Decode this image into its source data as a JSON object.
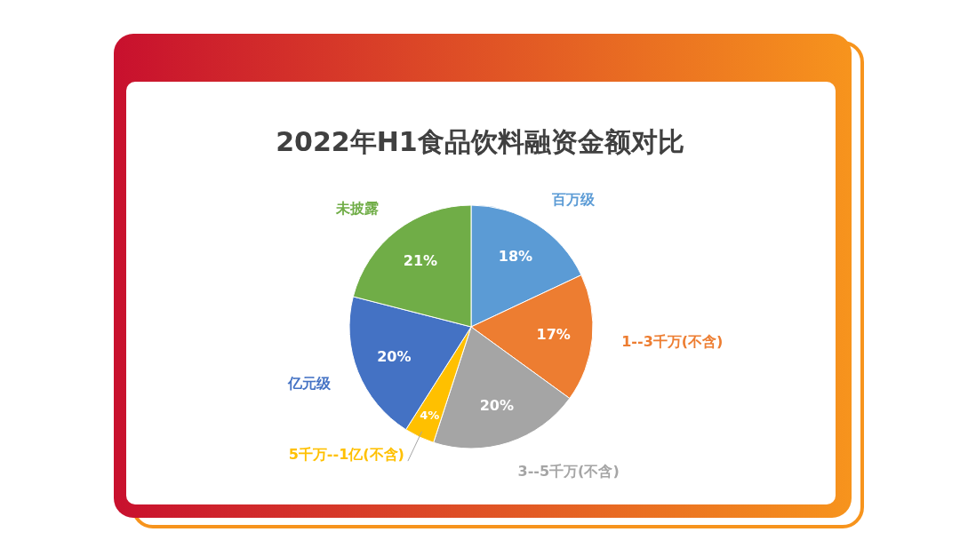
{
  "chart_data": {
    "type": "pie",
    "title": "2022年H1食品饮料融资金额对比",
    "categories": [
      "百万级",
      "1--3千万(不含)",
      "3--5千万(不含)",
      "5千万--1亿(不含)",
      "亿元级",
      "未披露"
    ],
    "values": [
      18,
      17,
      20,
      4,
      20,
      21
    ],
    "colors": [
      "#5b9bd5",
      "#ed7d31",
      "#a5a5a5",
      "#ffc000",
      "#4472c4",
      "#70ad47"
    ],
    "value_labels": [
      "18%",
      "17%",
      "20%",
      "4%",
      "20%",
      "21%"
    ]
  }
}
